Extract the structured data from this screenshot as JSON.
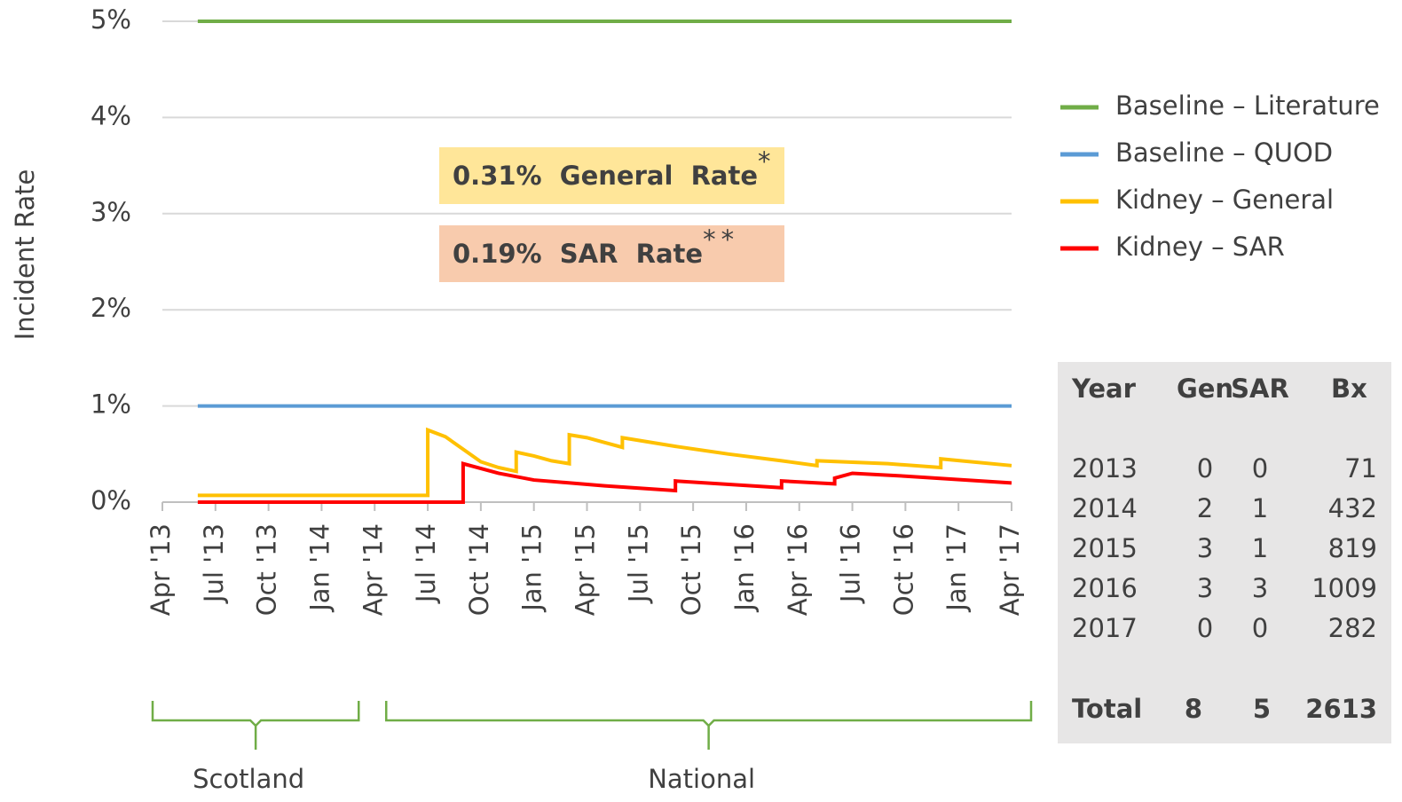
{
  "chart_data": {
    "type": "line",
    "y_label": "Incident Rate",
    "ylim": [
      0,
      5
    ],
    "yticks": [
      {
        "value": 0,
        "label": "0%"
      },
      {
        "value": 1,
        "label": "1%"
      },
      {
        "value": 2,
        "label": "2%"
      },
      {
        "value": 3,
        "label": "3%"
      },
      {
        "value": 4,
        "label": "4%"
      },
      {
        "value": 5,
        "label": "5%"
      }
    ],
    "grid": true,
    "xlim": [
      "2013-04",
      "2017-04"
    ],
    "xticks": [
      {
        "value": "2013-04",
        "label": "Apr '13"
      },
      {
        "value": "2013-07",
        "label": "Jul '13"
      },
      {
        "value": "2013-10",
        "label": "Oct '13"
      },
      {
        "value": "2014-01",
        "label": "Jan '14"
      },
      {
        "value": "2014-04",
        "label": "Apr '14"
      },
      {
        "value": "2014-07",
        "label": "Jul '14"
      },
      {
        "value": "2014-10",
        "label": "Oct '14"
      },
      {
        "value": "2015-01",
        "label": "Jan '15"
      },
      {
        "value": "2015-04",
        "label": "Apr '15"
      },
      {
        "value": "2015-07",
        "label": "Jul '15"
      },
      {
        "value": "2015-10",
        "label": "Oct '15"
      },
      {
        "value": "2016-01",
        "label": "Jan '16"
      },
      {
        "value": "2016-04",
        "label": "Apr '16"
      },
      {
        "value": "2016-07",
        "label": "Jul '16"
      },
      {
        "value": "2016-10",
        "label": "Oct '16"
      },
      {
        "value": "2017-01",
        "label": "Jan '17"
      },
      {
        "value": "2017-04",
        "label": "Apr '17"
      }
    ],
    "legend": "right",
    "series": [
      {
        "name": "Baseline – Literature",
        "color": "#70ad47",
        "x": [
          "2013-06",
          "2017-04"
        ],
        "values": [
          5,
          5
        ]
      },
      {
        "name": "Baseline – QUOD",
        "color": "#5b9bd5",
        "x": [
          "2013-06",
          "2017-04"
        ],
        "values": [
          1,
          1
        ]
      },
      {
        "name": "Kidney – General",
        "color": "#ffc000",
        "x": [
          "2013-06",
          "2014-07",
          "2014-07",
          "2014-08",
          "2014-09",
          "2014-10",
          "2014-11",
          "2014-12",
          "2014-12",
          "2015-01",
          "2015-02",
          "2015-03",
          "2015-03",
          "2015-04",
          "2015-05",
          "2015-06",
          "2015-06",
          "2015-09",
          "2015-12",
          "2016-03",
          "2016-05",
          "2016-05",
          "2016-09",
          "2016-12",
          "2016-12",
          "2017-04"
        ],
        "values": [
          0.07,
          0.07,
          0.75,
          0.68,
          0.55,
          0.42,
          0.36,
          0.32,
          0.52,
          0.48,
          0.43,
          0.4,
          0.7,
          0.67,
          0.62,
          0.57,
          0.67,
          0.58,
          0.5,
          0.43,
          0.38,
          0.43,
          0.4,
          0.36,
          0.45,
          0.38
        ]
      },
      {
        "name": "Kidney – SAR",
        "color": "#ff0000",
        "x": [
          "2013-06",
          "2014-09",
          "2014-09",
          "2014-11",
          "2015-01",
          "2015-05",
          "2015-09",
          "2015-09",
          "2016-03",
          "2016-03",
          "2016-06",
          "2016-06",
          "2016-07",
          "2016-10",
          "2017-04"
        ],
        "values": [
          0,
          0,
          0.4,
          0.3,
          0.23,
          0.17,
          0.12,
          0.22,
          0.15,
          0.22,
          0.19,
          0.25,
          0.3,
          0.27,
          0.2
        ]
      }
    ],
    "annotations": [
      {
        "text": "0.31%  General  Rate",
        "sup": "*",
        "color": "#ffe699"
      },
      {
        "text": "0.19%  SAR  Rate",
        "sup": "**",
        "color": "#f8cbad"
      }
    ],
    "regions": [
      {
        "label": "Scotland",
        "from": "2013-04",
        "to": "2014-04"
      },
      {
        "label": "National",
        "from": "2014-04",
        "to": "2017-04"
      }
    ],
    "table": {
      "header": [
        "Year",
        "Gen",
        "SAR",
        "Bx"
      ],
      "rows": [
        [
          2013,
          0,
          0,
          71
        ],
        [
          2014,
          2,
          1,
          432
        ],
        [
          2015,
          3,
          1,
          819
        ],
        [
          2016,
          3,
          3,
          1009
        ],
        [
          2017,
          0,
          0,
          282
        ]
      ],
      "total": [
        "Total",
        8,
        5,
        2613
      ]
    }
  }
}
